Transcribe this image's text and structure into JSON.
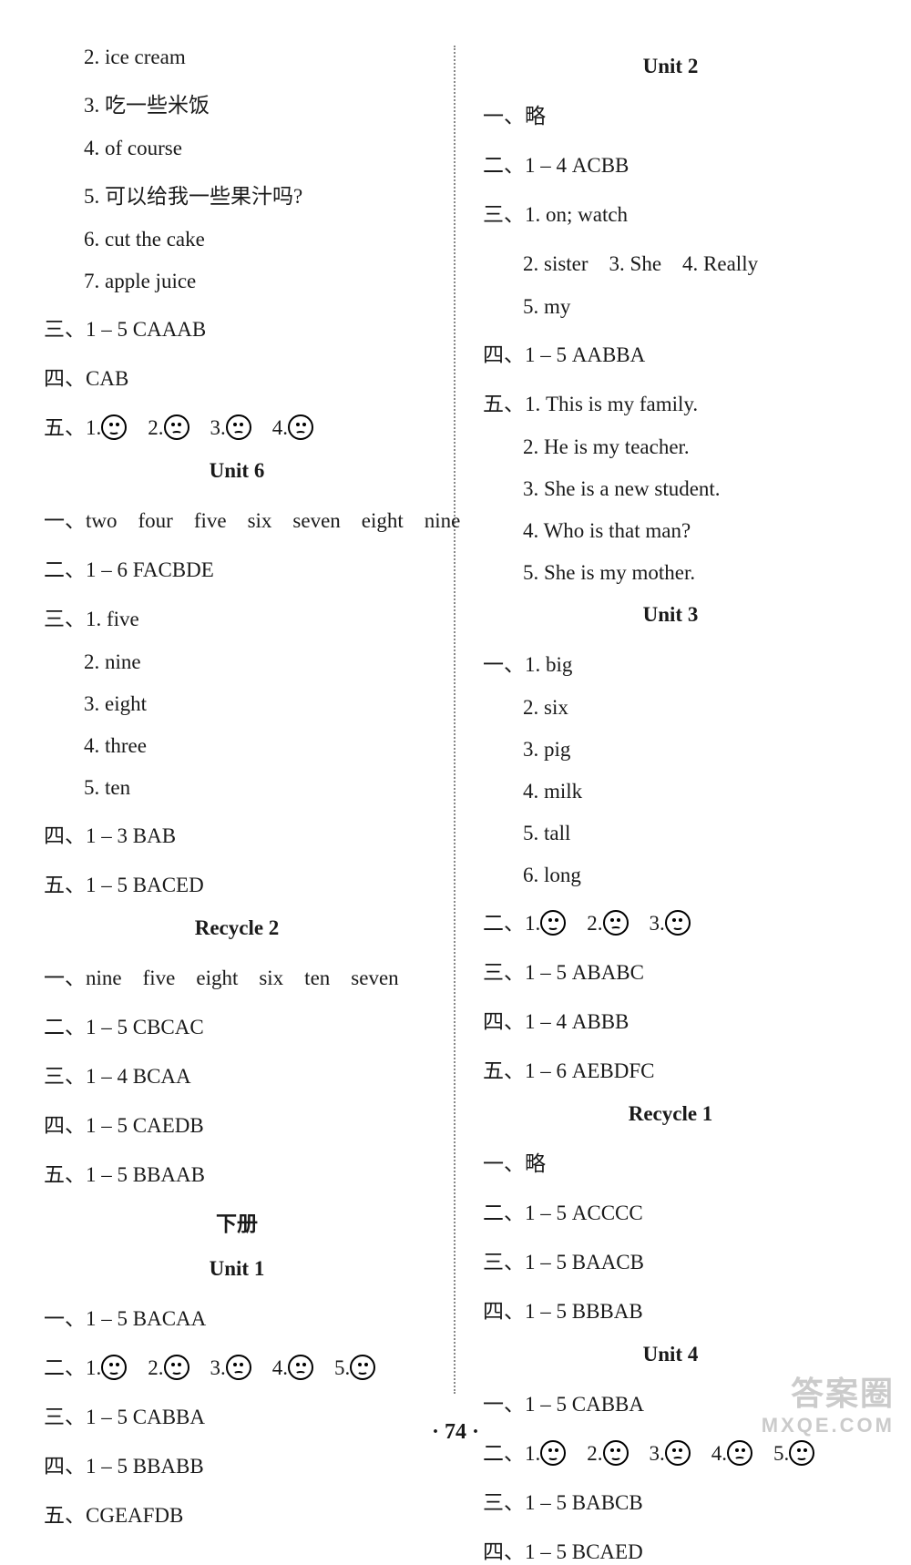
{
  "left": {
    "lines1": [
      "2. ice cream",
      "3. 吃一些米饭",
      "4. of course",
      "5. 可以给我一些果汁吗?",
      "6. cut the cake",
      "7. apple juice"
    ],
    "line2": "三、1 – 5 CAAAB",
    "line3": "四、CAB",
    "faces5_prefix": "五、1.",
    "faces5_items": [
      "smile",
      "sad",
      "sad",
      "sad"
    ],
    "unit6_title": "Unit 6",
    "u6_1": "一、two　four　five　six　seven　eight　nine",
    "u6_2": "二、1 – 6 FACBDE",
    "u6_3_head": "三、1. five",
    "u6_3_rest": [
      "2. nine",
      "3. eight",
      "4. three",
      "5. ten"
    ],
    "u6_4": "四、1 – 3 BAB",
    "u6_5": "五、1 – 5 BACED",
    "recycle2_title": "Recycle 2",
    "r2_1": "一、nine　five　eight　six　ten　seven",
    "r2_2": "二、1 – 5 CBCAC",
    "r2_3": "三、1 – 4 BCAA",
    "r2_4": "四、1 – 5 CAEDB",
    "r2_5": "五、1 – 5 BBAAB",
    "xia_title": "下册",
    "unit1_title": "Unit 1",
    "u1_1": "一、1 – 5 BACAA",
    "u1_faces_prefix": "二、1.",
    "u1_faces_items": [
      "smile",
      "smile",
      "sad",
      "sad",
      "smile"
    ],
    "u1_3": "三、1 – 5 CABBA",
    "u1_4": "四、1 – 5 BBABB",
    "u1_5": "五、CGEAFDB"
  },
  "right": {
    "unit2_title": "Unit 2",
    "u2_1": "一、略",
    "u2_2": "二、1 – 4 ACBB",
    "u2_3_head": "三、1. on;  watch",
    "u2_3_rest": [
      "2. sister　3. She　4. Really",
      "5. my"
    ],
    "u2_4": "四、1 – 5 AABBA",
    "u2_5_head": "五、1. This is my family.",
    "u2_5_rest": [
      "2. He is my teacher.",
      "3. She is a new student.",
      "4. Who is that man?",
      "5. She is my mother."
    ],
    "unit3_title": "Unit 3",
    "u3_1_head": "一、1. big",
    "u3_1_rest": [
      "2. six",
      "3. pig",
      "4. milk",
      "5. tall",
      "6. long"
    ],
    "u3_faces_prefix": "二、1.",
    "u3_faces_items": [
      "smile",
      "sad",
      "smile"
    ],
    "u3_3": "三、1 – 5 ABABC",
    "u3_4": "四、1 – 4 ABBB",
    "u3_5": "五、1 – 6 AEBDFC",
    "recycle1_title": "Recycle 1",
    "r1_1": "一、略",
    "r1_2": "二、1 – 5 ACCCC",
    "r1_3": "三、1 – 5 BAACB",
    "r1_4": "四、1 – 5 BBBAB",
    "unit4_title": "Unit 4",
    "u4_1": "一、1 – 5 CABBA",
    "u4_faces_prefix": "二、1.",
    "u4_faces_items": [
      "smile",
      "smile",
      "sad",
      "sad",
      "smile"
    ],
    "u4_3": "三、1 – 5 BABCB",
    "u4_4": "四、1 – 5 BCAED"
  },
  "pagenum": "· 74 ·",
  "watermark1": "答案圈",
  "watermark2": "MXQE.COM"
}
